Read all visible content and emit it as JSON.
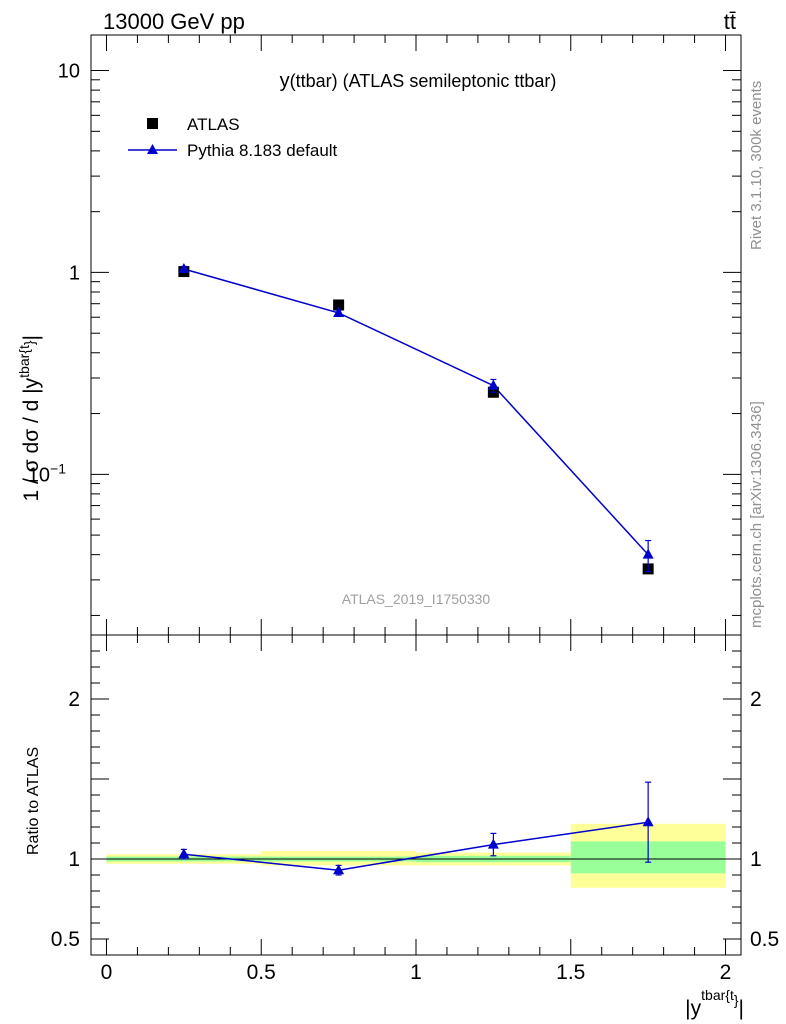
{
  "header": {
    "energy_label": "13000 GeV pp",
    "process_label": "tt̄"
  },
  "side_text": {
    "rivet": "Rivet 3.1.10,  300k events",
    "source": "mcplots.cern.ch [arXiv:1306.3436]"
  },
  "chart_data": [
    {
      "type": "scatter",
      "panel": "main",
      "title": "y(ttbar) (ATLAS semileptonic ttbar)",
      "title_prefix": "y",
      "title_rest": "(ttbar) (ATLAS semileptonic ttbar)",
      "watermark": "ATLAS_2019_I1750330",
      "ylabel": "1 / σ dσ / d |y",
      "ylabel_sup": "tbar{t",
      "ylabel_sub": "}",
      "ylabel_end": "|",
      "yscale": "log",
      "ylim": [
        0.016,
        15
      ],
      "xlim": [
        -0.05,
        2.05
      ],
      "y_ticks": [
        {
          "value": 10,
          "label": "10"
        },
        {
          "value": 1,
          "label": "1"
        },
        {
          "value": 0.1,
          "label": "10",
          "sup": "−1"
        }
      ],
      "legend_position": "top-left",
      "series": [
        {
          "name": "ATLAS",
          "marker": "square",
          "color": "#000000",
          "x": [
            0.25,
            0.75,
            1.25,
            1.75
          ],
          "y": [
            1.01,
            0.69,
            0.255,
            0.034
          ],
          "yerr": [
            0.02,
            0.015,
            0.008,
            0.002
          ]
        },
        {
          "name": "Pythia 8.183 default",
          "marker": "triangle",
          "color": "#0000cc",
          "x": [
            0.25,
            0.75,
            1.25,
            1.75
          ],
          "y": [
            1.04,
            0.63,
            0.275,
            0.04
          ],
          "yerr": [
            0.03,
            0.02,
            0.02,
            0.007
          ]
        }
      ]
    },
    {
      "type": "scatter",
      "panel": "ratio",
      "ylabel": "Ratio to ATLAS",
      "xlabel": "|y",
      "xlabel_sup": "tbar{t",
      "xlabel_sub": "}",
      "xlabel_end": "|",
      "ylim": [
        0.4,
        2.4
      ],
      "xlim": [
        -0.05,
        2.05
      ],
      "x_ticks": [
        {
          "value": 0,
          "label": "0"
        },
        {
          "value": 0.5,
          "label": "0.5"
        },
        {
          "value": 1,
          "label": "1"
        },
        {
          "value": 1.5,
          "label": "1.5"
        },
        {
          "value": 2,
          "label": "2"
        }
      ],
      "y_ticks": [
        {
          "value": 0.5,
          "label": "0.5"
        },
        {
          "value": 1,
          "label": "1"
        },
        {
          "value": 2,
          "label": "2"
        }
      ],
      "bands": [
        {
          "x0": 0,
          "x1": 0.5,
          "stat_lo": 0.985,
          "stat_hi": 1.015,
          "tot_lo": 0.97,
          "tot_hi": 1.03
        },
        {
          "x0": 0.5,
          "x1": 1.0,
          "stat_lo": 0.985,
          "stat_hi": 1.015,
          "tot_lo": 0.96,
          "tot_hi": 1.05
        },
        {
          "x0": 1.0,
          "x1": 1.5,
          "stat_lo": 0.98,
          "stat_hi": 1.02,
          "tot_lo": 0.96,
          "tot_hi": 1.04
        },
        {
          "x0": 1.5,
          "x1": 2.0,
          "stat_lo": 0.91,
          "stat_hi": 1.11,
          "tot_lo": 0.82,
          "tot_hi": 1.22
        }
      ],
      "series": [
        {
          "name": "Pythia 8.183 default",
          "color": "#0000cc",
          "x": [
            0.25,
            0.75,
            1.25,
            1.75
          ],
          "y": [
            1.03,
            0.93,
            1.09,
            1.23
          ],
          "yerr": [
            0.03,
            0.03,
            0.07,
            0.25
          ]
        }
      ]
    }
  ]
}
